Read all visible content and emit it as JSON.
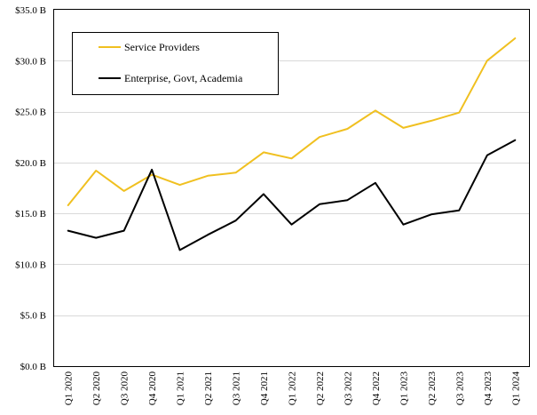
{
  "chart_data": {
    "type": "line",
    "categories": [
      "Q1 2020",
      "Q2 2020",
      "Q3 2020",
      "Q4 2020",
      "Q1 2021",
      "Q2 2021",
      "Q3 2021",
      "Q4 2021",
      "Q1 2022",
      "Q2 2022",
      "Q3 2022",
      "Q4 2022",
      "Q1 2023",
      "Q2 2023",
      "Q3 2023",
      "Q4 2023",
      "Q1 2024"
    ],
    "series": [
      {
        "name": "Service Providers",
        "color": "#f0c020",
        "values": [
          15.8,
          19.2,
          17.2,
          18.8,
          17.8,
          18.7,
          19.0,
          21.0,
          20.4,
          22.5,
          23.3,
          25.1,
          23.4,
          24.1,
          24.9,
          30.0,
          32.2
        ]
      },
      {
        "name": "Enterprise, Govt, Academia",
        "color": "#000000",
        "values": [
          13.3,
          12.6,
          13.3,
          19.3,
          11.4,
          12.9,
          14.3,
          16.9,
          13.9,
          15.9,
          16.3,
          18.0,
          13.9,
          14.9,
          15.3,
          20.7,
          22.2
        ]
      }
    ],
    "y_tick_labels": [
      "$0.0 B",
      "$5.0 B",
      "$10.0 B",
      "$15.0 B",
      "$20.0 B",
      "$25.0 B",
      "$30.0 B",
      "$35.0 B"
    ],
    "ylim": [
      0,
      35
    ],
    "y_step": 5,
    "grid": true,
    "legend_position": "top-left"
  }
}
